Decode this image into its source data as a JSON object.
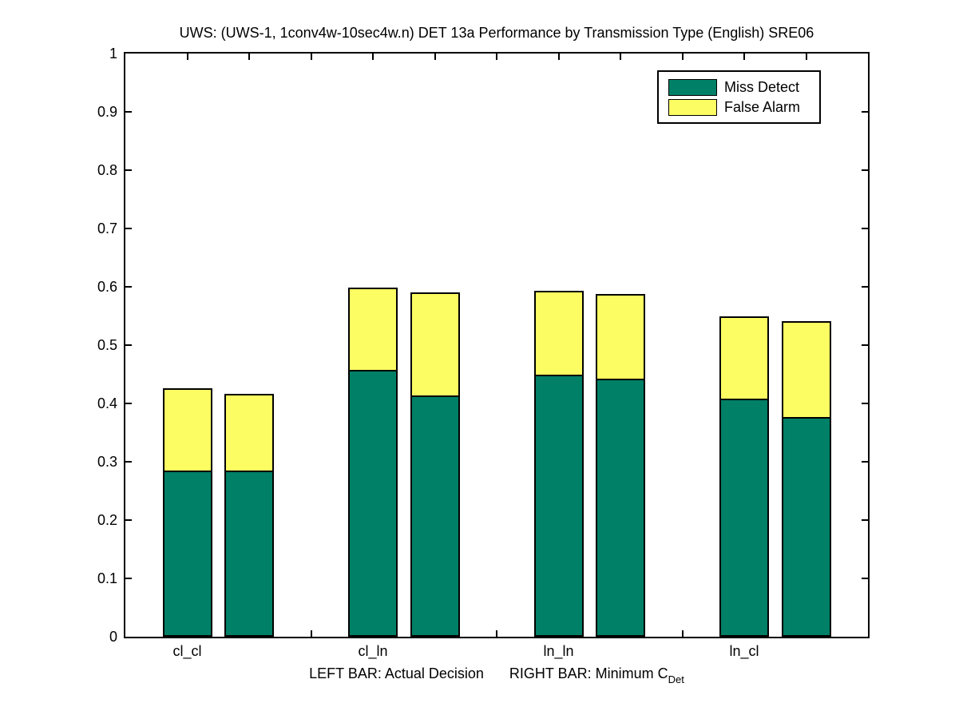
{
  "title": "UWS: (UWS-1, 1conv4w-10sec4w.n) DET 13a Performance by Transmission Type (English) SRE06",
  "legend": {
    "position": "upper-right",
    "items": [
      {
        "label": "Miss Detect",
        "color": "#008066"
      },
      {
        "label": "False Alarm",
        "color": "#FCFC63"
      }
    ]
  },
  "xlabel": {
    "left_part": "LEFT BAR: Actual Decision",
    "right_part": "RIGHT BAR: Minimum C",
    "subscript": "Det"
  },
  "chart_data": {
    "type": "bar",
    "stacked": true,
    "title": "UWS: (UWS-1, 1conv4w-10sec4w.n) DET 13a Performance by Transmission Type (English) SRE06",
    "categories": [
      "cl_cl",
      "cl_ln",
      "ln_ln",
      "ln_cl"
    ],
    "bars_per_category": [
      "Actual Decision (left bar)",
      "Minimum CDet (right bar)"
    ],
    "series": [
      {
        "name": "Miss Detect",
        "color": "#008066",
        "actual_decision": [
          0.285,
          0.457,
          0.45,
          0.408
        ],
        "minimum_cdet": [
          0.285,
          0.414,
          0.443,
          0.377
        ]
      },
      {
        "name": "False Alarm",
        "color": "#FCFC63",
        "actual_decision": [
          0.141,
          0.141,
          0.143,
          0.141
        ],
        "minimum_cdet": [
          0.131,
          0.176,
          0.145,
          0.164
        ]
      }
    ],
    "stack_totals": {
      "actual_decision": [
        0.426,
        0.598,
        0.593,
        0.549
      ],
      "minimum_cdet": [
        0.416,
        0.59,
        0.588,
        0.541
      ]
    },
    "xlabel": "LEFT BAR: Actual Decision    RIGHT BAR: Minimum C_Det",
    "ylabel": "",
    "ylim": [
      0,
      1
    ],
    "y_tick_step": 0.1,
    "y_tick_labels": [
      "0",
      "0.1",
      "0.2",
      "0.3",
      "0.4",
      "0.5",
      "0.6",
      "0.7",
      "0.8",
      "0.9",
      "1"
    ],
    "grid": false,
    "legend_position": "upper right",
    "bar_x_positions": [
      1,
      2,
      4,
      5,
      7,
      8,
      10,
      11
    ],
    "x_axis_units_range": [
      0,
      12
    ],
    "bar_width_units": 0.8,
    "edge_color": "#000000",
    "background_color": "#ffffff"
  }
}
